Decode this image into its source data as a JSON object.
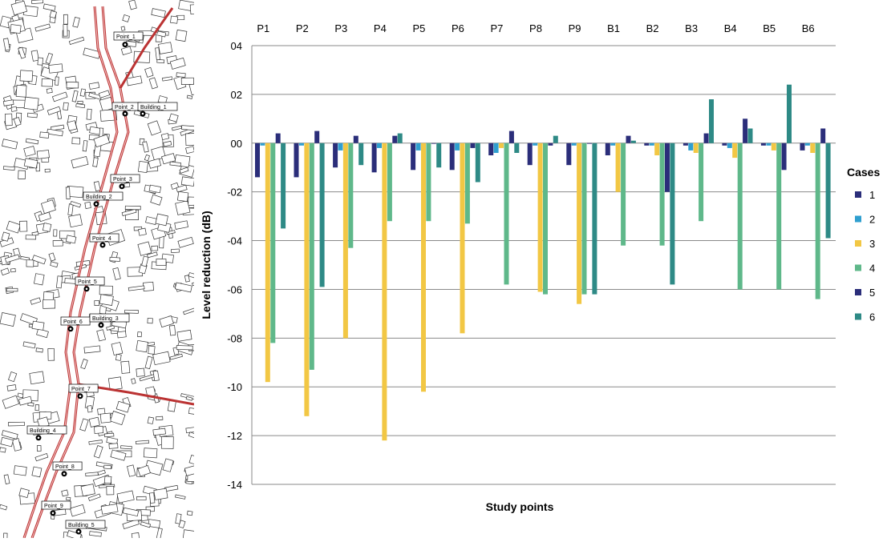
{
  "map": {
    "point_labels": [
      "Point_1",
      "Point_2",
      "Point_3",
      "Point_4",
      "Point_5",
      "Point_6",
      "Point_7",
      "Point_8",
      "Point_9"
    ],
    "building_labels": [
      "Building_1",
      "Building_2",
      "Building_3",
      "Building_4",
      "Building_5"
    ]
  },
  "chart_data": {
    "type": "bar",
    "categories": [
      "P1",
      "P2",
      "P3",
      "P4",
      "P5",
      "P6",
      "P7",
      "P8",
      "P9",
      "B1",
      "B2",
      "B3",
      "B4",
      "B5",
      "B6"
    ],
    "ylabel": "Level reduction (dB)",
    "xlabel": "Study points",
    "ylim": [
      -14,
      4
    ],
    "yticks": [
      "04",
      "02",
      "00",
      "-02",
      "-04",
      "-06",
      "-08",
      "-10",
      "-12",
      "-14"
    ],
    "ytick_values": [
      4,
      2,
      0,
      -2,
      -4,
      -6,
      -8,
      -10,
      -12,
      -14
    ],
    "grid": true,
    "legend_title": "Cases",
    "legend_position": "right",
    "series": [
      {
        "name": "1",
        "color": "#2b2e7a",
        "values": [
          -1.4,
          -1.4,
          -1.0,
          -1.2,
          -1.1,
          -1.1,
          -0.5,
          -0.9,
          -0.9,
          -0.5,
          -0.1,
          -0.1,
          -0.1,
          -0.1,
          -0.3
        ]
      },
      {
        "name": "2",
        "color": "#2f9fcf",
        "values": [
          -0.1,
          -0.1,
          -0.3,
          -0.2,
          -0.3,
          -0.3,
          -0.4,
          -0.1,
          -0.1,
          -0.1,
          -0.1,
          -0.3,
          -0.2,
          -0.1,
          -0.1
        ]
      },
      {
        "name": "3",
        "color": "#f2c744",
        "values": [
          -9.8,
          -11.2,
          -8.0,
          -12.2,
          -10.2,
          -7.8,
          -0.2,
          -6.1,
          -6.6,
          -2.0,
          -0.5,
          -0.4,
          -0.6,
          -0.3,
          -0.4
        ]
      },
      {
        "name": "4",
        "color": "#5fb88a",
        "values": [
          -8.2,
          -9.3,
          -4.3,
          -3.2,
          -3.2,
          -3.3,
          -5.8,
          -6.2,
          -6.2,
          -4.2,
          -4.2,
          -3.2,
          -6.0,
          -6.0,
          -6.4
        ]
      },
      {
        "name": "5",
        "color": "#2b2e7a",
        "values": [
          0.4,
          0.5,
          0.3,
          0.3,
          0.0,
          -0.2,
          0.5,
          -0.1,
          0.0,
          0.3,
          -2.0,
          0.4,
          1.0,
          -1.1,
          0.6
        ]
      },
      {
        "name": "6",
        "color": "#2e8a86",
        "values": [
          -3.5,
          -5.9,
          -0.9,
          0.4,
          -1.0,
          -1.6,
          -0.4,
          0.3,
          -6.2,
          0.1,
          -5.8,
          1.8,
          0.6,
          2.4,
          -3.9
        ]
      }
    ]
  }
}
